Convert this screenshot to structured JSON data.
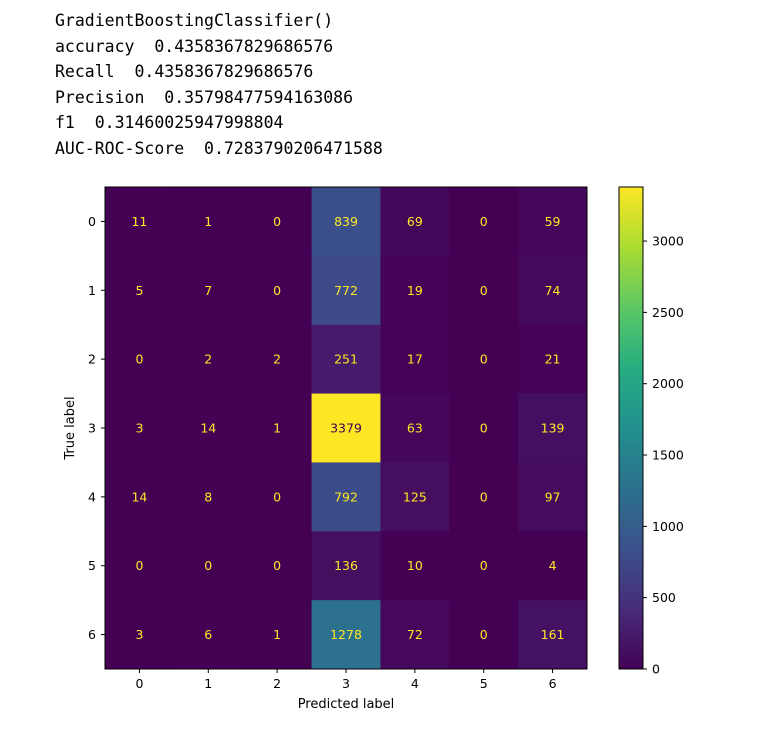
{
  "output": {
    "lines": [
      "GradientBoostingClassifier()",
      "accuracy  0.4358367829686576",
      "Recall  0.4358367829686576",
      "Precision  0.35798477594163086",
      "f1  0.31460025947998804",
      "AUC-ROC-Score  0.7283790206471588"
    ]
  },
  "chart_data": {
    "type": "heatmap",
    "title": "",
    "xlabel": "Predicted label",
    "ylabel": "True label",
    "x_categories": [
      "0",
      "1",
      "2",
      "3",
      "4",
      "5",
      "6"
    ],
    "y_categories": [
      "0",
      "1",
      "2",
      "3",
      "4",
      "5",
      "6"
    ],
    "values": [
      [
        11,
        1,
        0,
        839,
        69,
        0,
        59
      ],
      [
        5,
        7,
        0,
        772,
        19,
        0,
        74
      ],
      [
        0,
        2,
        2,
        251,
        17,
        0,
        21
      ],
      [
        3,
        14,
        1,
        3379,
        63,
        0,
        139
      ],
      [
        14,
        8,
        0,
        792,
        125,
        0,
        97
      ],
      [
        0,
        0,
        0,
        136,
        10,
        0,
        4
      ],
      [
        3,
        6,
        1,
        1278,
        72,
        0,
        161
      ]
    ],
    "colormap": "viridis",
    "colorbar": {
      "min": 0,
      "max": 3379,
      "ticks": [
        0,
        500,
        1000,
        1500,
        2000,
        2500,
        3000
      ]
    },
    "text_colors": {
      "light": "#fde725",
      "dark": "#440154"
    },
    "grid": false,
    "legend": "none"
  }
}
